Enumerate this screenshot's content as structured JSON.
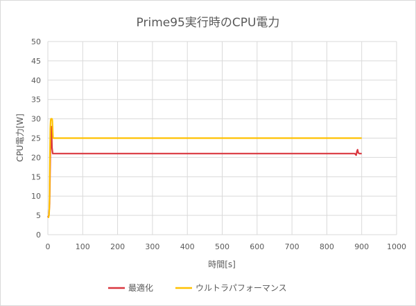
{
  "chart_data": {
    "type": "line",
    "title": "Prime95実行時のCPU電力",
    "xlabel": "時間[s]",
    "ylabel": "CPU電力[W]",
    "xlim": [
      0,
      1000
    ],
    "ylim": [
      0,
      50
    ],
    "x_ticks": [
      0,
      100,
      200,
      300,
      400,
      500,
      600,
      700,
      800,
      900,
      1000
    ],
    "y_ticks": [
      0,
      5,
      10,
      15,
      20,
      25,
      30,
      35,
      40,
      45,
      50
    ],
    "grid": true,
    "legend_position": "bottom",
    "series": [
      {
        "name": "最適化",
        "color": "#d9363e",
        "x": [
          0,
          3,
          5,
          7,
          9,
          10,
          11,
          12,
          14,
          20,
          100,
          300,
          500,
          700,
          880,
          884,
          886,
          888,
          890,
          893,
          896,
          900
        ],
        "y": [
          4.5,
          5,
          8,
          20,
          27,
          28,
          26,
          22.5,
          21,
          21,
          21,
          21,
          21,
          21,
          21,
          20.6,
          21.5,
          22,
          21.2,
          21,
          21,
          21
        ]
      },
      {
        "name": "ウルトラパフォーマンス",
        "color": "#ffc000",
        "x": [
          0,
          2,
          3,
          4,
          5,
          6,
          7,
          8,
          9,
          10,
          12,
          13,
          14,
          15,
          16,
          20,
          100,
          300,
          500,
          700,
          900
        ],
        "y": [
          4.5,
          4.5,
          5,
          6,
          10,
          20,
          27.5,
          29.5,
          30,
          30,
          30,
          29.5,
          27,
          25,
          25,
          25,
          25,
          25,
          25,
          25,
          25
        ]
      }
    ]
  }
}
